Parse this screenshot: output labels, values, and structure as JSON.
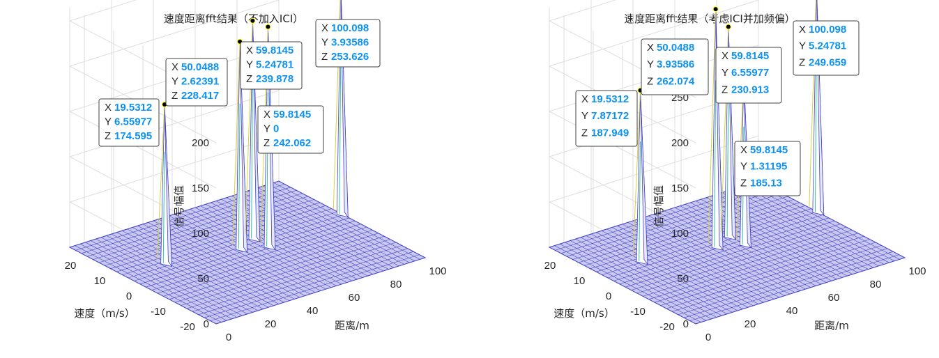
{
  "chart_data": [
    {
      "type": "surface3d",
      "title": "速度距离fft结果（不加入ICI）",
      "xlabel": "距离/m",
      "ylabel": "速度（m/s）",
      "zlabel": "信号幅值",
      "xticks": [
        "0",
        "20",
        "40",
        "60",
        "80",
        "100"
      ],
      "yticks": [
        "20",
        "10",
        "0",
        "-10",
        "-20"
      ],
      "zticks": [
        "0",
        "50",
        "100",
        "150",
        "200",
        "250"
      ],
      "xlim": [
        0,
        100
      ],
      "ylim": [
        -25,
        25
      ],
      "zlim": [
        0,
        260
      ],
      "surface_color": "#4040c8",
      "datatips": [
        {
          "x": "19.5312",
          "y": "6.55977",
          "z": "174.595"
        },
        {
          "x": "50.0488",
          "y": "2.62391",
          "z": "228.417"
        },
        {
          "x": "59.8145",
          "y": "5.24781",
          "z": "239.878"
        },
        {
          "x": "59.8145",
          "y": "0",
          "z": "242.062"
        },
        {
          "x": "100.098",
          "y": "3.93586",
          "z": "253.626"
        }
      ]
    },
    {
      "type": "surface3d",
      "title": "速度距离fft结果（考虑ICI并加频偏）",
      "xlabel": "距离/m",
      "ylabel": "速度（m/s）",
      "zlabel": "信号幅值",
      "xticks": [
        "0",
        "20",
        "40",
        "60",
        "80",
        "100"
      ],
      "yticks": [
        "20",
        "10",
        "0",
        "-10",
        "-20"
      ],
      "zticks": [
        "0",
        "50",
        "100",
        "150",
        "200",
        "250"
      ],
      "xlim": [
        0,
        100
      ],
      "ylim": [
        -25,
        25
      ],
      "zlim": [
        0,
        260
      ],
      "surface_color": "#4040c8",
      "datatips": [
        {
          "x": "19.5312",
          "y": "7.87172",
          "z": "187.949"
        },
        {
          "x": "50.0488",
          "y": "3.93586",
          "z": "262.074"
        },
        {
          "x": "59.8145",
          "y": "6.55977",
          "z": "230.913"
        },
        {
          "x": "59.8145",
          "y": "1.31195",
          "z": "185.13"
        },
        {
          "x": "100.098",
          "y": "5.24781",
          "z": "249.659"
        }
      ]
    }
  ]
}
